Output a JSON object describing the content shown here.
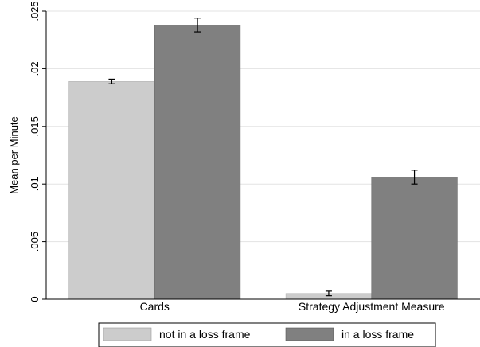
{
  "chart_data": {
    "type": "bar",
    "categories": [
      "Cards",
      "Strategy Adjustment Measure"
    ],
    "series": [
      {
        "name": "not in a loss frame",
        "values": [
          0.0189,
          0.0005
        ],
        "error_low": [
          0.0187,
          0.0003
        ],
        "error_high": [
          0.0191,
          0.0007
        ],
        "color": "#cccccc"
      },
      {
        "name": "in a loss frame",
        "values": [
          0.0238,
          0.0106
        ],
        "error_low": [
          0.0232,
          0.01
        ],
        "error_high": [
          0.0244,
          0.0112
        ],
        "color": "#808080"
      }
    ],
    "ylabel": "Mean per Minute",
    "xlabel": "",
    "ylim": [
      0,
      0.025
    ],
    "yticks": [
      0,
      0.005,
      0.01,
      0.015,
      0.02,
      0.025
    ],
    "ytick_labels": [
      "0",
      ".005",
      ".01",
      ".015",
      ".02",
      ".025"
    ],
    "grid": true,
    "legend_position": "bottom"
  }
}
